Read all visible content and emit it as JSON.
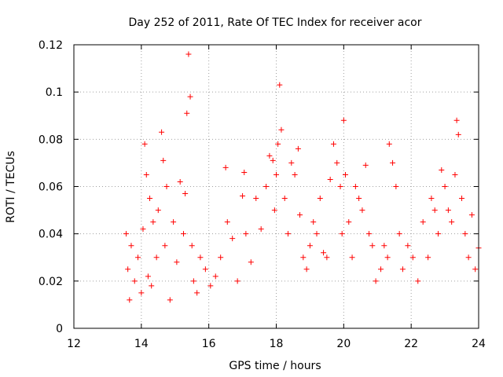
{
  "chart_data": {
    "type": "scatter",
    "title": "Day 252 of 2011, Rate Of TEC Index for receiver acor",
    "xlabel": "GPS time / hours",
    "ylabel": "ROTI / TECUs",
    "xlim": [
      12,
      24
    ],
    "ylim": [
      0,
      0.12
    ],
    "xticks": [
      12,
      14,
      16,
      18,
      20,
      22,
      24
    ],
    "xtick_labels": [
      "12",
      "14",
      "16",
      "18",
      "20",
      "22",
      "24"
    ],
    "yticks": [
      0,
      0.02,
      0.04,
      0.06,
      0.08,
      0.1,
      0.12
    ],
    "ytick_labels": [
      "0",
      "0.02",
      "0.04",
      "0.06",
      "0.08",
      "0.1",
      "0.12"
    ],
    "grid": true,
    "marker": "plus",
    "color": "#ff0000",
    "series": [
      {
        "x": [
          13.55,
          13.6,
          13.65,
          13.7,
          13.8,
          13.9,
          14.0,
          14.05,
          14.1,
          14.15,
          14.2,
          14.25,
          14.3,
          14.35,
          14.45,
          14.5,
          14.6,
          14.65,
          14.7,
          14.75,
          14.85,
          14.95,
          15.05,
          15.15,
          15.25,
          15.3,
          15.35,
          15.4,
          15.45,
          15.5,
          15.55,
          15.65,
          15.75,
          15.9,
          16.05,
          16.2,
          16.35,
          16.5,
          16.55,
          16.7,
          16.85,
          17.0,
          17.05,
          17.1,
          17.25,
          17.4,
          17.55,
          17.7,
          17.8,
          17.9,
          17.95,
          18.0,
          18.05,
          18.1,
          18.15,
          18.25,
          18.35,
          18.45,
          18.55,
          18.65,
          18.7,
          18.8,
          18.9,
          19.0,
          19.1,
          19.2,
          19.3,
          19.4,
          19.5,
          19.6,
          19.7,
          19.8,
          19.9,
          19.95,
          20.0,
          20.05,
          20.15,
          20.25,
          20.35,
          20.45,
          20.55,
          20.65,
          20.75,
          20.85,
          20.95,
          21.1,
          21.2,
          21.3,
          21.35,
          21.45,
          21.55,
          21.65,
          21.75,
          21.9,
          22.05,
          22.2,
          22.35,
          22.5,
          22.6,
          22.7,
          22.8,
          22.9,
          23.0,
          23.1,
          23.2,
          23.3,
          23.35,
          23.4,
          23.5,
          23.6,
          23.7,
          23.8,
          23.9,
          24.0
        ],
        "y": [
          0.04,
          0.025,
          0.012,
          0.035,
          0.02,
          0.03,
          0.015,
          0.042,
          0.078,
          0.065,
          0.022,
          0.055,
          0.018,
          0.045,
          0.03,
          0.05,
          0.083,
          0.071,
          0.035,
          0.06,
          0.012,
          0.045,
          0.028,
          0.062,
          0.04,
          0.057,
          0.091,
          0.116,
          0.098,
          0.035,
          0.02,
          0.015,
          0.03,
          0.025,
          0.018,
          0.022,
          0.03,
          0.068,
          0.045,
          0.038,
          0.02,
          0.056,
          0.066,
          0.04,
          0.028,
          0.055,
          0.042,
          0.06,
          0.073,
          0.071,
          0.05,
          0.065,
          0.078,
          0.103,
          0.084,
          0.055,
          0.04,
          0.07,
          0.065,
          0.076,
          0.048,
          0.03,
          0.025,
          0.035,
          0.045,
          0.04,
          0.055,
          0.032,
          0.03,
          0.063,
          0.078,
          0.07,
          0.06,
          0.04,
          0.088,
          0.065,
          0.045,
          0.03,
          0.06,
          0.055,
          0.05,
          0.069,
          0.04,
          0.035,
          0.02,
          0.025,
          0.035,
          0.03,
          0.078,
          0.07,
          0.06,
          0.04,
          0.025,
          0.035,
          0.03,
          0.02,
          0.045,
          0.03,
          0.055,
          0.05,
          0.04,
          0.067,
          0.06,
          0.05,
          0.045,
          0.065,
          0.088,
          0.082,
          0.055,
          0.04,
          0.03,
          0.048,
          0.025,
          0.034
        ]
      }
    ]
  }
}
